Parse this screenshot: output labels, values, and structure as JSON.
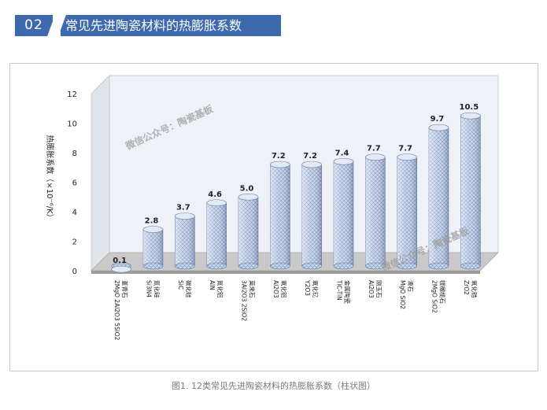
{
  "header": {
    "number": "02",
    "title": "常见先进陶瓷材料的热膨胀系数"
  },
  "caption": "图1. 12类常见先进陶瓷材料的热膨胀系数（柱状图）",
  "watermarks": [
    "微信公众号：陶瓷基板",
    "微信公众号：陶瓷基板"
  ],
  "colors": {
    "header_bg": "#3d6aae",
    "bar_fill": "#c9d6ec",
    "bar_hatch": "#7f94bd",
    "wall": "#eef1f7",
    "floor": "#c9c9c9"
  },
  "chart_data": {
    "type": "bar",
    "ylabel": "热膨胀系数（×10⁻⁶/K）",
    "ylim": [
      0,
      12
    ],
    "yticks": [
      "0",
      "2",
      "4",
      "6",
      "8",
      "10",
      "12"
    ],
    "grid": false,
    "categories": [
      [
        "2MgO 2Al2O3 5SiO2",
        "堇青石"
      ],
      [
        "Si3N4",
        "氮化硅"
      ],
      [
        "SiC",
        "碳化硅"
      ],
      [
        "AlN",
        "氮化铝"
      ],
      [
        "3Al2O3 2SiO2",
        "莫来石"
      ],
      [
        "Al2O3",
        "氧化铝"
      ],
      [
        "Y2O3",
        "氧化钇"
      ],
      [
        "TiC-TiN",
        "金属陶瓷"
      ],
      [
        "Al2O3",
        "刚玉石"
      ],
      [
        "MgO SiO2",
        "滑石"
      ],
      [
        "2MgO SiO2",
        "镁橄榄石"
      ],
      [
        "ZrO2",
        "氧化锆"
      ]
    ],
    "values": [
      0.1,
      2.8,
      3.7,
      4.6,
      5.0,
      7.2,
      7.2,
      7.4,
      7.7,
      7.7,
      9.7,
      10.5
    ],
    "data_labels": [
      "0.1",
      "2.8",
      "3.7",
      "4.6",
      "5.0",
      "7.2",
      "7.2",
      "7.4",
      "7.7",
      "7.7",
      "9.7",
      "10.5"
    ]
  }
}
